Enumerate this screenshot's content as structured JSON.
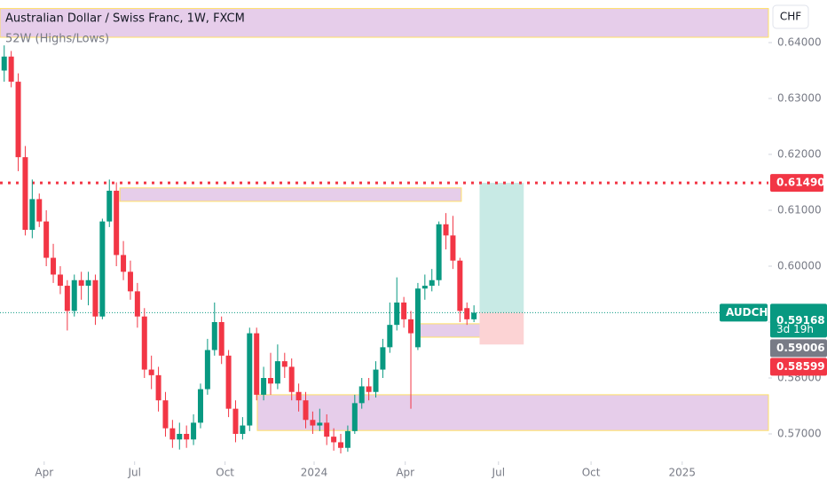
{
  "chart_data": {
    "type": "candlestick",
    "title": "Australian Dollar / Swiss Franc, 1W, FXCM",
    "subtitle": "52W (Highs/Lows)",
    "currency": "CHF",
    "symbol": "AUDCHF",
    "countdown": "3d 19h",
    "up_color": "#089981",
    "down_color": "#f23645",
    "open": [
      0.635,
      0.6375,
      0.633,
      0.6195,
      0.6065,
      0.612,
      0.608,
      0.6015,
      0.5985,
      0.5965,
      0.592,
      0.5975,
      0.5965,
      0.5975,
      0.591,
      0.608,
      0.6135,
      0.602,
      0.599,
      0.5955,
      0.591,
      0.5815,
      0.5805,
      0.576,
      0.571,
      0.569,
      0.57,
      0.569,
      0.572,
      0.578,
      0.585,
      0.59,
      0.584,
      0.5745,
      0.57,
      0.5715,
      0.588,
      0.577,
      0.58,
      0.579,
      0.583,
      0.582,
      0.5775,
      0.576,
      0.5725,
      0.5715,
      0.572,
      0.5695,
      0.5685,
      0.5675,
      0.5705,
      0.5755,
      0.5785,
      0.5775,
      0.5815,
      0.5855,
      0.5895,
      0.5935,
      0.5905,
      0.5855,
      0.596,
      0.5965,
      0.5975,
      0.6075,
      0.6055,
      0.601,
      0.5925,
      0.5905
    ],
    "high": [
      0.6395,
      0.6385,
      0.6345,
      0.6215,
      0.6155,
      0.613,
      0.61,
      0.604,
      0.6,
      0.5975,
      0.5985,
      0.599,
      0.599,
      0.5985,
      0.6085,
      0.6155,
      0.615,
      0.6045,
      0.601,
      0.597,
      0.5925,
      0.584,
      0.582,
      0.5775,
      0.5725,
      0.572,
      0.5715,
      0.5735,
      0.579,
      0.587,
      0.5935,
      0.591,
      0.585,
      0.576,
      0.573,
      0.589,
      0.589,
      0.582,
      0.5845,
      0.586,
      0.5845,
      0.5835,
      0.579,
      0.5775,
      0.574,
      0.5745,
      0.5735,
      0.571,
      0.57,
      0.5715,
      0.577,
      0.58,
      0.58,
      0.583,
      0.587,
      0.5935,
      0.598,
      0.5945,
      0.592,
      0.597,
      0.5985,
      0.5995,
      0.608,
      0.6095,
      0.609,
      0.6015,
      0.5935,
      0.593
    ],
    "low": [
      0.633,
      0.632,
      0.617,
      0.6055,
      0.605,
      0.607,
      0.6,
      0.597,
      0.595,
      0.5885,
      0.591,
      0.594,
      0.593,
      0.5895,
      0.5905,
      0.607,
      0.6,
      0.5975,
      0.594,
      0.589,
      0.58,
      0.578,
      0.574,
      0.5695,
      0.5675,
      0.5672,
      0.5675,
      0.568,
      0.571,
      0.577,
      0.584,
      0.5825,
      0.573,
      0.5685,
      0.569,
      0.5705,
      0.576,
      0.576,
      0.577,
      0.578,
      0.58,
      0.576,
      0.574,
      0.571,
      0.57,
      0.5705,
      0.568,
      0.567,
      0.5665,
      0.5668,
      0.57,
      0.5745,
      0.576,
      0.5765,
      0.58,
      0.5845,
      0.5885,
      0.589,
      0.5745,
      0.585,
      0.594,
      0.5955,
      0.5965,
      0.603,
      0.5995,
      0.59,
      0.5895,
      0.59
    ],
    "close": [
      0.6375,
      0.633,
      0.6195,
      0.6065,
      0.612,
      0.608,
      0.6015,
      0.5985,
      0.5965,
      0.592,
      0.5975,
      0.5965,
      0.5975,
      0.591,
      0.608,
      0.6135,
      0.602,
      0.599,
      0.5955,
      0.591,
      0.5815,
      0.5805,
      0.576,
      0.571,
      0.569,
      0.57,
      0.569,
      0.572,
      0.578,
      0.585,
      0.59,
      0.584,
      0.5745,
      0.57,
      0.5715,
      0.588,
      0.577,
      0.58,
      0.579,
      0.583,
      0.582,
      0.5775,
      0.576,
      0.5725,
      0.5715,
      0.572,
      0.5695,
      0.5685,
      0.5675,
      0.5705,
      0.5755,
      0.5785,
      0.5775,
      0.5815,
      0.5855,
      0.5895,
      0.5935,
      0.5905,
      0.588,
      0.596,
      0.5965,
      0.5975,
      0.6075,
      0.6055,
      0.601,
      0.592,
      0.5905,
      0.59168
    ],
    "ylim": [
      0.56508,
      0.64762
    ],
    "yticks": [
      {
        "value": 0.57,
        "label": "0.57000"
      },
      {
        "value": 0.58,
        "label": "0.58000"
      },
      {
        "value": 0.59,
        "label": "0.59000"
      },
      {
        "value": 0.6,
        "label": "0.60000"
      },
      {
        "value": 0.61,
        "label": "0.61000"
      },
      {
        "value": 0.62,
        "label": "0.62000"
      },
      {
        "value": 0.63,
        "label": "0.63000"
      },
      {
        "value": 0.64,
        "label": "0.64000"
      }
    ],
    "xlim": [
      -0.6,
      109
    ],
    "xticks": [
      {
        "value": 5.7,
        "label": "Apr"
      },
      {
        "value": 18.6,
        "label": "Jul"
      },
      {
        "value": 31.5,
        "label": "Oct"
      },
      {
        "value": 44.2,
        "label": "2024"
      },
      {
        "value": 57.2,
        "label": "Apr"
      },
      {
        "value": 70.5,
        "label": "Jul"
      },
      {
        "value": 83.7,
        "label": "Oct"
      },
      {
        "value": 96.7,
        "label": "2025"
      }
    ],
    "zone_color": "#e6cdea",
    "zone_border": "#ffe066",
    "zones": [
      {
        "x": [
          -0.6,
          109
        ],
        "y": [
          0.64095,
          0.6461
        ]
      },
      {
        "x": [
          16.5,
          65.2
        ],
        "y": [
          0.6116,
          0.614
        ]
      },
      {
        "x": [
          58.9,
          72.2
        ],
        "y": [
          0.5873,
          0.5897
        ]
      },
      {
        "x": [
          36.1,
          109
        ],
        "y": [
          0.5706,
          0.577
        ]
      }
    ],
    "level": {
      "value": 0.6149,
      "label": "0.61490",
      "color": "#f23645"
    },
    "last_price": {
      "value": 0.59168,
      "label": "0.59168"
    },
    "price_labels": [
      {
        "value": 0.59006,
        "label": "0.59006",
        "color": "#787b86"
      },
      {
        "value": 0.58599,
        "label": "0.58599",
        "color": "#f23645"
      }
    ],
    "position": {
      "x": [
        67.8,
        74.1
      ],
      "target": 0.6149,
      "entry": 0.59168,
      "stop": 0.58599,
      "target_color": "#c8eae5",
      "stop_color": "#fcd3d4"
    }
  }
}
